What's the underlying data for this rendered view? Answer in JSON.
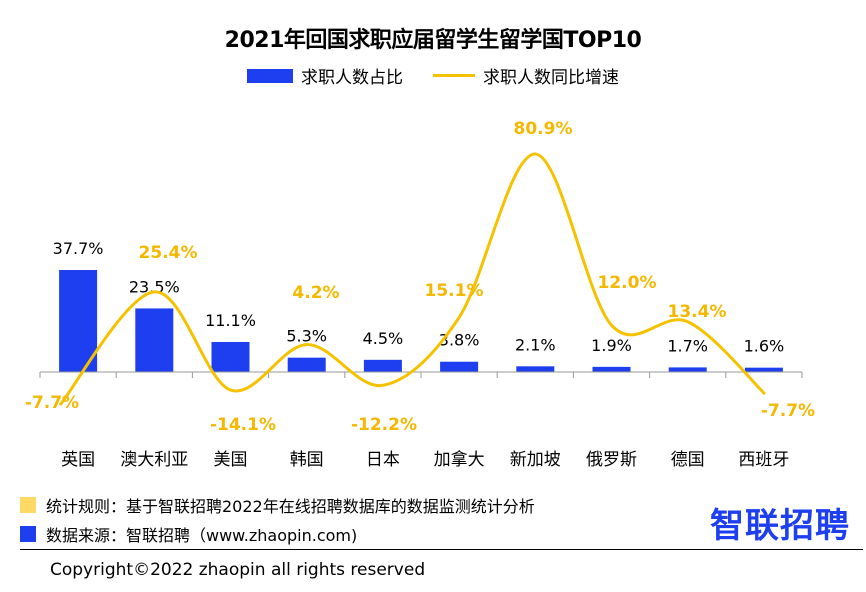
{
  "title": "2021年回国求职应届留学生留学国TOP10",
  "legend": {
    "bar_label": "求职人数占比",
    "line_label": "求职人数同比增速"
  },
  "colors": {
    "bar": "#1e3ff0",
    "line": "#f5c200",
    "line_label": "#f5b800",
    "note_square_1": "#ffd966",
    "note_square_2": "#1e3ff0",
    "logo": "#1e3ff0"
  },
  "chart_data": {
    "type": "bar",
    "title": "2021年回国求职应届留学生留学国TOP10",
    "categories": [
      "英国",
      "澳大利亚",
      "美国",
      "韩国",
      "日本",
      "加拿大",
      "新加坡",
      "俄罗斯",
      "德国",
      "西班牙"
    ],
    "series": [
      {
        "name": "求职人数占比",
        "type": "bar",
        "values": [
          37.7,
          23.5,
          11.1,
          5.3,
          4.5,
          3.8,
          2.1,
          1.9,
          1.7,
          1.6
        ],
        "labels": [
          "37.7%",
          "23.5%",
          "11.1%",
          "5.3%",
          "4.5%",
          "3.8%",
          "2.1%",
          "1.9%",
          "1.7%",
          "1.6%"
        ]
      },
      {
        "name": "求职人数同比增速",
        "type": "line",
        "smooth": true,
        "values": [
          -7.7,
          25.4,
          -14.1,
          4.2,
          -12.2,
          15.1,
          80.9,
          12.0,
          13.4,
          -7.7
        ],
        "labels": [
          "-7.7%",
          "25.4%",
          "-14.1%",
          "4.2%",
          "-12.2%",
          "15.1%",
          "80.9%",
          "12.0%",
          "13.4%",
          "-7.7%"
        ]
      }
    ],
    "grid": false,
    "legend_position": "top-center"
  },
  "footer": {
    "rule_note": "统计规则：基于智联招聘2022年在线招聘数据库的数据监测统计分析",
    "source_note": "数据来源：智联招聘（www.zhaopin.com)",
    "copyright": "Copyright©2022 zhaopin all rights reserved",
    "logo_text": "智联招聘"
  }
}
